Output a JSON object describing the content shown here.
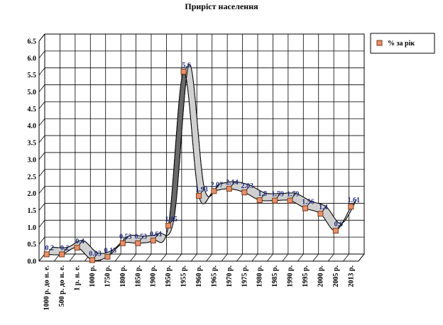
{
  "chart_data": {
    "type": "line",
    "title": "Приріст населення",
    "xlabel": "",
    "ylabel": "",
    "ylim": [
      0,
      6.5
    ],
    "yticks": [
      "0.0",
      "0.5",
      "1.0",
      "1.5",
      "2.0",
      "2.5",
      "3.0",
      "3.5",
      "4.0",
      "4.5",
      "5.0",
      "5.5",
      "6.0",
      "6.5"
    ],
    "categories": [
      "1000 р. до н. е.",
      "500 р. до н. е.",
      "1 р. н. е.",
      "1000 р.",
      "1750 р.",
      "1800 р.",
      "1850 р.",
      "1900 р.",
      "1950 р.",
      "1955 р.",
      "1960 р.",
      "1965 р.",
      "1970 р.",
      "1975 р.",
      "1980 р.",
      "1985 р.",
      "1990 р.",
      "1995 р.",
      "2000 р.",
      "2005 р.",
      "2013 р."
    ],
    "series": [
      {
        "name": "% за рік",
        "values": [
          0.2,
          0.2,
          0.4,
          0.03,
          0.13,
          0.53,
          0.53,
          0.61,
          1.05,
          5.6,
          1.93,
          2.07,
          2.14,
          2.03,
          1.8,
          1.79,
          1.79,
          1.56,
          1.4,
          0.9,
          1.61
        ],
        "labels": [
          "0.2",
          "0.2",
          "0.4",
          "0.03",
          "0.13",
          "0.53",
          "0.53",
          "0.61",
          "1.05",
          "5.6",
          "1.93",
          "2.07",
          "2.14",
          "2.03",
          "1.8",
          "1.79",
          "1.79",
          "1.56",
          "1.4",
          "0.9",
          "1.61"
        ]
      }
    ],
    "grid": true,
    "legend_position": "top-right",
    "colors": {
      "marker_fill": "#e8916a",
      "marker_stroke": "#7a3a1a",
      "ribbon_fill": "#d0d0d0",
      "ribbon_dark": "#6a6a6a",
      "grid": "#000000",
      "data_label": "#1f2a7a"
    }
  }
}
